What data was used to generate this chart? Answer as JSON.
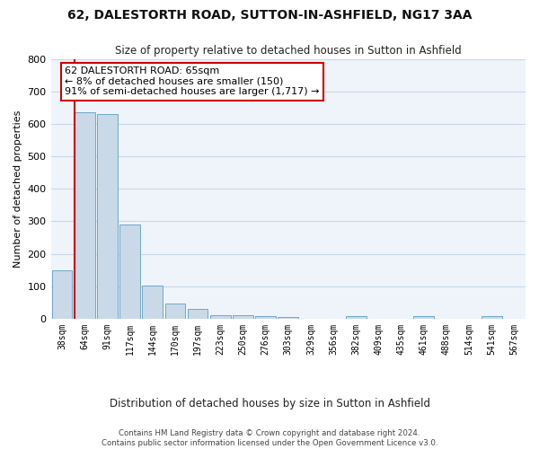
{
  "title": "62, DALESTORTH ROAD, SUTTON-IN-ASHFIELD, NG17 3AA",
  "subtitle": "Size of property relative to detached houses in Sutton in Ashfield",
  "xlabel": "Distribution of detached houses by size in Sutton in Ashfield",
  "ylabel": "Number of detached properties",
  "footer1": "Contains HM Land Registry data © Crown copyright and database right 2024.",
  "footer2": "Contains public sector information licensed under the Open Government Licence v3.0.",
  "bar_labels": [
    "38sqm",
    "64sqm",
    "91sqm",
    "117sqm",
    "144sqm",
    "170sqm",
    "197sqm",
    "223sqm",
    "250sqm",
    "276sqm",
    "303sqm",
    "329sqm",
    "356sqm",
    "382sqm",
    "409sqm",
    "435sqm",
    "461sqm",
    "488sqm",
    "514sqm",
    "541sqm",
    "567sqm"
  ],
  "bar_values": [
    148,
    635,
    630,
    290,
    103,
    47,
    29,
    12,
    12,
    8,
    5,
    0,
    0,
    8,
    0,
    0,
    8,
    0,
    0,
    8,
    0
  ],
  "bar_color": "#c9d9e8",
  "bar_edge_color": "#6fa8c8",
  "grid_color": "#c8d8e8",
  "bg_color": "#eef4fa",
  "subject_line_color": "#cc0000",
  "annotation_text": "62 DALESTORTH ROAD: 65sqm\n← 8% of detached houses are smaller (150)\n91% of semi-detached houses are larger (1,717) →",
  "annotation_box_color": "#cc0000",
  "annotation_bg": "#ffffff",
  "ylim": [
    0,
    800
  ],
  "yticks": [
    0,
    100,
    200,
    300,
    400,
    500,
    600,
    700,
    800
  ]
}
